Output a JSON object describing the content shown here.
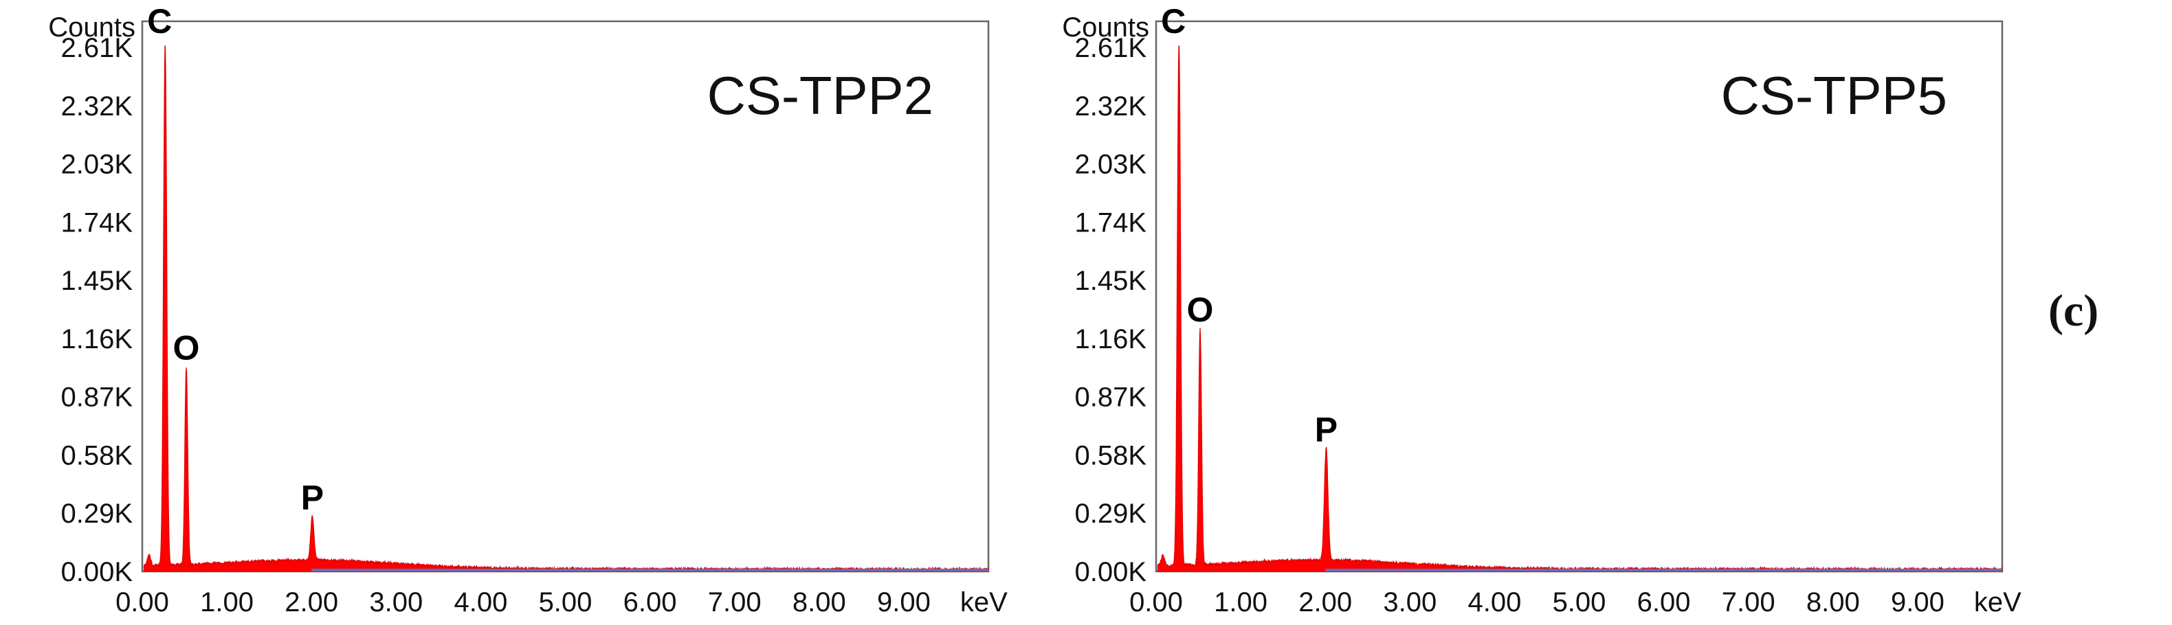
{
  "figure_label": "(c)",
  "colors": {
    "spectrum": "#ff0000",
    "frame": "#666666",
    "baseline": "#6a6ab8",
    "text": "#111111"
  },
  "chart_data": [
    {
      "type": "area",
      "title": "CS-TPP2",
      "ylabel": "Counts",
      "xlabel": "keV",
      "x_ticks": [
        "0.00",
        "1.00",
        "2.00",
        "3.00",
        "4.00",
        "5.00",
        "6.00",
        "7.00",
        "8.00",
        "9.00"
      ],
      "y_ticks": [
        "0.00K",
        "0.29K",
        "0.58K",
        "0.87K",
        "1.16K",
        "1.45K",
        "1.74K",
        "2.03K",
        "2.32K",
        "2.61K"
      ],
      "xlim": [
        0,
        10
      ],
      "ylim": [
        0,
        2.74
      ],
      "grid": false,
      "peaks": [
        {
          "element": "C",
          "energy_keV": 0.27,
          "counts_K": 2.6,
          "width": 0.045
        },
        {
          "element": "O",
          "energy_keV": 0.52,
          "counts_K": 0.98,
          "width": 0.04
        },
        {
          "element": "P",
          "energy_keV": 2.01,
          "counts_K": 0.22,
          "width": 0.045
        }
      ],
      "background_counts_K": 0.04
    },
    {
      "type": "area",
      "title": "CS-TPP5",
      "ylabel": "Counts",
      "xlabel": "keV",
      "x_ticks": [
        "0.00",
        "1.00",
        "2.00",
        "3.00",
        "4.00",
        "5.00",
        "6.00",
        "7.00",
        "8.00",
        "9.00"
      ],
      "y_ticks": [
        "0.00K",
        "0.29K",
        "0.58K",
        "0.87K",
        "1.16K",
        "1.45K",
        "1.74K",
        "2.03K",
        "2.32K",
        "2.61K"
      ],
      "xlim": [
        0,
        10
      ],
      "ylim": [
        0,
        2.74
      ],
      "grid": false,
      "peaks": [
        {
          "element": "C",
          "energy_keV": 0.27,
          "counts_K": 2.6,
          "width": 0.045
        },
        {
          "element": "O",
          "energy_keV": 0.52,
          "counts_K": 1.17,
          "width": 0.04
        },
        {
          "element": "P",
          "energy_keV": 2.01,
          "counts_K": 0.56,
          "width": 0.05
        }
      ],
      "background_counts_K": 0.04
    }
  ]
}
